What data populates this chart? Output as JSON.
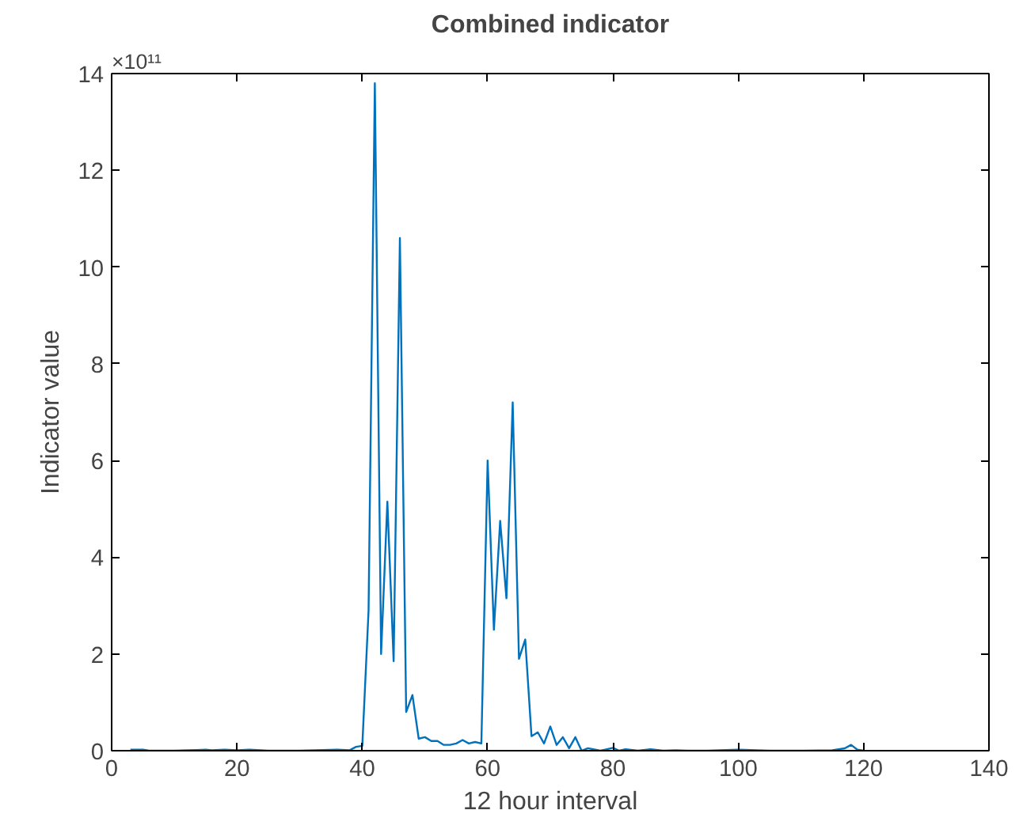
{
  "chart_data": {
    "type": "line",
    "title": "Combined indicator",
    "xlabel": "12 hour interval",
    "ylabel": "Indicator value",
    "annotations": [
      "×10¹¹"
    ],
    "x": [
      3,
      4,
      5,
      6,
      10,
      15,
      16,
      18,
      20,
      22,
      25,
      30,
      36,
      38,
      39,
      40,
      41,
      42,
      43,
      44,
      45,
      46,
      47,
      48,
      49,
      50,
      51,
      52,
      53,
      54,
      55,
      56,
      57,
      58,
      59,
      60,
      61,
      62,
      63,
      64,
      65,
      66,
      67,
      68,
      69,
      70,
      71,
      72,
      73,
      74,
      75,
      76,
      78,
      80,
      81,
      82,
      84,
      86,
      88,
      90,
      92,
      95,
      100,
      105,
      110,
      115,
      117,
      118,
      119,
      120
    ],
    "series": [
      {
        "color": "#0072bd",
        "values": [
          0.02,
          0.02,
          0.02,
          0,
          0,
          0.02,
          0.01,
          0.02,
          0.01,
          0.02,
          0,
          0,
          0.02,
          0.01,
          0.08,
          0.1,
          2.9,
          13.8,
          2.0,
          5.15,
          1.85,
          10.6,
          0.8,
          1.15,
          0.25,
          0.28,
          0.2,
          0.2,
          0.12,
          0.12,
          0.15,
          0.22,
          0.15,
          0.18,
          0.15,
          6.0,
          2.5,
          4.75,
          3.15,
          7.2,
          1.9,
          2.3,
          0.3,
          0.38,
          0.15,
          0.5,
          0.12,
          0.28,
          0.05,
          0.28,
          0,
          0.05,
          0,
          0.06,
          0,
          0.03,
          0,
          0.03,
          0,
          0.01,
          0,
          0,
          0.02,
          0,
          0,
          0.01,
          0.05,
          0.12,
          0.02,
          0
        ]
      }
    ],
    "xlim": [
      0,
      140
    ],
    "xticks": [
      0,
      20,
      40,
      60,
      80,
      100,
      120,
      140
    ],
    "ylim": [
      0,
      14
    ],
    "yticks": [
      0,
      2,
      4,
      6,
      8,
      10,
      12,
      14
    ],
    "grid": false,
    "marker": "none",
    "line_style": "solid"
  }
}
